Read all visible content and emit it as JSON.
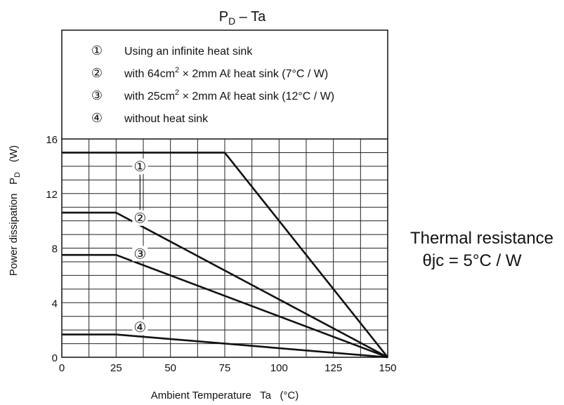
{
  "chart_data": {
    "type": "line",
    "title": "P",
    "title_sub": "D",
    "title_suffix": " – Ta",
    "xlabel": "Ambient Temperature   Ta   (°C)",
    "ylabel": "Power dissipation   P",
    "ylabel_sub": "D",
    "ylabel_unit": "(W)",
    "xlim": [
      0,
      150
    ],
    "ylim": [
      0,
      16
    ],
    "x_ticks": [
      "0",
      "25",
      "50",
      "75",
      "100",
      "125",
      "150"
    ],
    "y_ticks": [
      "0",
      "4",
      "8",
      "12",
      "16"
    ],
    "grid": true,
    "series": [
      {
        "marker": "①",
        "x": [
          0,
          75,
          150
        ],
        "y": [
          15,
          15,
          0
        ]
      },
      {
        "marker": "②",
        "x": [
          0,
          25,
          150
        ],
        "y": [
          10.6,
          10.6,
          0
        ]
      },
      {
        "marker": "③",
        "x": [
          0,
          25,
          150
        ],
        "y": [
          7.5,
          7.5,
          0
        ]
      },
      {
        "marker": "④",
        "x": [
          0,
          25,
          150
        ],
        "y": [
          1.67,
          1.67,
          0
        ]
      }
    ],
    "legend": [
      {
        "marker": "①",
        "text": "Using an infinite heat sink"
      },
      {
        "marker": "②",
        "pre": "with 64cm",
        "sup": "2",
        "post": " × 2mm Aℓ heat sink (7°C / W)"
      },
      {
        "marker": "③",
        "pre": "with 25cm",
        "sup": "2",
        "post": " × 2mm Aℓ heat sink (12°C / W)"
      },
      {
        "marker": "④",
        "text": "without heat sink"
      }
    ],
    "annotation_line1": "Thermal resistance",
    "annotation_line2": "θjc = 5°C / W"
  }
}
